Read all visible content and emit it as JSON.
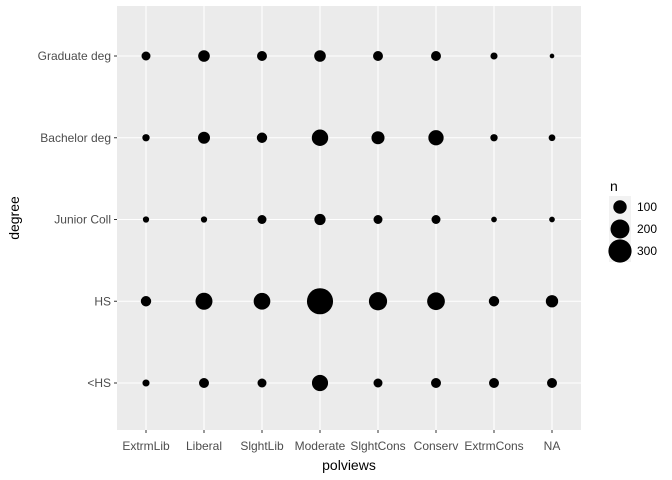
{
  "chart_data": {
    "type": "scatter",
    "xlabel": "polviews",
    "ylabel": "degree",
    "x_categories": [
      "ExtrmLib",
      "Liberal",
      "SlghtLib",
      "Moderate",
      "SlghtCons",
      "Conserv",
      "ExtrmCons",
      "NA"
    ],
    "y_categories": [
      "<HS",
      "HS",
      "Junior Coll",
      "Bachelor deg",
      "Graduate deg"
    ],
    "size_variable": "n",
    "legend": {
      "title": "n",
      "placement": "right",
      "entries": [
        {
          "label": "100",
          "value": 100
        },
        {
          "label": "200",
          "value": 200
        },
        {
          "label": "300",
          "value": 300
        }
      ]
    },
    "grid": true,
    "background_color": "#ebebeb",
    "grid_color": "#ffffff",
    "point_color": "#000000",
    "points": [
      {
        "x": "ExtrmLib",
        "y": "Graduate deg",
        "n": 45
      },
      {
        "x": "Liberal",
        "y": "Graduate deg",
        "n": 75
      },
      {
        "x": "SlghtLib",
        "y": "Graduate deg",
        "n": 55
      },
      {
        "x": "Moderate",
        "y": "Graduate deg",
        "n": 75
      },
      {
        "x": "SlghtCons",
        "y": "Graduate deg",
        "n": 55
      },
      {
        "x": "Conserv",
        "y": "Graduate deg",
        "n": 55
      },
      {
        "x": "ExtrmCons",
        "y": "Graduate deg",
        "n": 28
      },
      {
        "x": "NA",
        "y": "Graduate deg",
        "n": 12
      },
      {
        "x": "ExtrmLib",
        "y": "Bachelor deg",
        "n": 30
      },
      {
        "x": "Liberal",
        "y": "Bachelor deg",
        "n": 80
      },
      {
        "x": "SlghtLib",
        "y": "Bachelor deg",
        "n": 60
      },
      {
        "x": "Moderate",
        "y": "Bachelor deg",
        "n": 150
      },
      {
        "x": "SlghtCons",
        "y": "Bachelor deg",
        "n": 95
      },
      {
        "x": "Conserv",
        "y": "Bachelor deg",
        "n": 130
      },
      {
        "x": "ExtrmCons",
        "y": "Bachelor deg",
        "n": 30
      },
      {
        "x": "NA",
        "y": "Bachelor deg",
        "n": 25
      },
      {
        "x": "ExtrmLib",
        "y": "Junior Coll",
        "n": 22
      },
      {
        "x": "Liberal",
        "y": "Junior Coll",
        "n": 22
      },
      {
        "x": "SlghtLib",
        "y": "Junior Coll",
        "n": 45
      },
      {
        "x": "Moderate",
        "y": "Junior Coll",
        "n": 70
      },
      {
        "x": "SlghtCons",
        "y": "Junior Coll",
        "n": 45
      },
      {
        "x": "Conserv",
        "y": "Junior Coll",
        "n": 45
      },
      {
        "x": "ExtrmCons",
        "y": "Junior Coll",
        "n": 18
      },
      {
        "x": "NA",
        "y": "Junior Coll",
        "n": 18
      },
      {
        "x": "ExtrmLib",
        "y": "HS",
        "n": 60
      },
      {
        "x": "Liberal",
        "y": "HS",
        "n": 160
      },
      {
        "x": "SlghtLib",
        "y": "HS",
        "n": 155
      },
      {
        "x": "Moderate",
        "y": "HS",
        "n": 380
      },
      {
        "x": "SlghtCons",
        "y": "HS",
        "n": 185
      },
      {
        "x": "Conserv",
        "y": "HS",
        "n": 175
      },
      {
        "x": "ExtrmCons",
        "y": "HS",
        "n": 60
      },
      {
        "x": "NA",
        "y": "HS",
        "n": 85
      },
      {
        "x": "ExtrmLib",
        "y": "<HS",
        "n": 28
      },
      {
        "x": "Liberal",
        "y": "<HS",
        "n": 55
      },
      {
        "x": "SlghtLib",
        "y": "<HS",
        "n": 45
      },
      {
        "x": "Moderate",
        "y": "<HS",
        "n": 145
      },
      {
        "x": "SlghtCons",
        "y": "<HS",
        "n": 45
      },
      {
        "x": "Conserv",
        "y": "<HS",
        "n": 55
      },
      {
        "x": "ExtrmCons",
        "y": "<HS",
        "n": 55
      },
      {
        "x": "NA",
        "y": "<HS",
        "n": 55
      }
    ]
  }
}
